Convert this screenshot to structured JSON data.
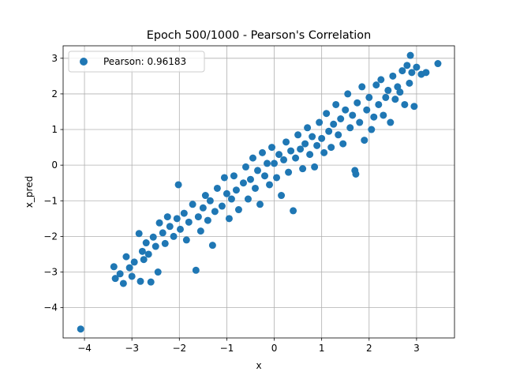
{
  "chart_data": {
    "type": "scatter",
    "title": "Epoch 500/1000 - Pearson's Correlation",
    "xlabel": "x",
    "ylabel": "x_pred",
    "xlim": [
      -4.45,
      3.8
    ],
    "ylim": [
      -4.85,
      3.35
    ],
    "xticks": [
      -4,
      -3,
      -2,
      -1,
      0,
      1,
      2,
      3
    ],
    "yticks": [
      -4,
      -3,
      -2,
      -1,
      0,
      1,
      2,
      3
    ],
    "xtick_labels": [
      "−4",
      "−3",
      "−2",
      "−1",
      "0",
      "1",
      "2",
      "3"
    ],
    "ytick_labels": [
      "−4",
      "−3",
      "−2",
      "−1",
      "0",
      "1",
      "2",
      "3"
    ],
    "grid": true,
    "legend_position": "top-left",
    "marker_color": "#1f77b4",
    "series": [
      {
        "name": "Pearson: 0.96183",
        "points": [
          [
            -4.08,
            -4.6
          ],
          [
            -3.38,
            -2.85
          ],
          [
            -3.35,
            -3.18
          ],
          [
            -3.25,
            -3.05
          ],
          [
            -3.18,
            -3.32
          ],
          [
            -3.12,
            -2.57
          ],
          [
            -3.05,
            -2.88
          ],
          [
            -3.0,
            -3.12
          ],
          [
            -2.95,
            -2.72
          ],
          [
            -2.85,
            -1.92
          ],
          [
            -2.82,
            -3.26
          ],
          [
            -2.78,
            -2.42
          ],
          [
            -2.75,
            -2.65
          ],
          [
            -2.7,
            -2.18
          ],
          [
            -2.65,
            -2.5
          ],
          [
            -2.6,
            -3.28
          ],
          [
            -2.55,
            -2.02
          ],
          [
            -2.5,
            -2.28
          ],
          [
            -2.45,
            -3.0
          ],
          [
            -2.42,
            -1.62
          ],
          [
            -2.35,
            -1.9
          ],
          [
            -2.3,
            -2.2
          ],
          [
            -2.25,
            -1.45
          ],
          [
            -2.2,
            -1.72
          ],
          [
            -2.12,
            -2.0
          ],
          [
            -2.05,
            -1.5
          ],
          [
            -2.02,
            -0.55
          ],
          [
            -1.98,
            -1.8
          ],
          [
            -1.9,
            -1.35
          ],
          [
            -1.85,
            -2.1
          ],
          [
            -1.8,
            -1.6
          ],
          [
            -1.72,
            -1.1
          ],
          [
            -1.65,
            -2.95
          ],
          [
            -1.6,
            -1.45
          ],
          [
            -1.55,
            -1.85
          ],
          [
            -1.5,
            -1.2
          ],
          [
            -1.45,
            -0.85
          ],
          [
            -1.4,
            -1.55
          ],
          [
            -1.35,
            -1.0
          ],
          [
            -1.3,
            -2.25
          ],
          [
            -1.25,
            -1.3
          ],
          [
            -1.2,
            -0.65
          ],
          [
            -1.1,
            -1.15
          ],
          [
            -1.05,
            -0.35
          ],
          [
            -1.0,
            -0.8
          ],
          [
            -0.95,
            -1.5
          ],
          [
            -0.9,
            -0.95
          ],
          [
            -0.85,
            -0.3
          ],
          [
            -0.8,
            -0.7
          ],
          [
            -0.75,
            -1.25
          ],
          [
            -0.65,
            -0.5
          ],
          [
            -0.6,
            -0.05
          ],
          [
            -0.55,
            -0.95
          ],
          [
            -0.5,
            -0.4
          ],
          [
            -0.45,
            0.2
          ],
          [
            -0.4,
            -0.65
          ],
          [
            -0.35,
            -0.15
          ],
          [
            -0.3,
            -1.1
          ],
          [
            -0.25,
            0.35
          ],
          [
            -0.2,
            -0.3
          ],
          [
            -0.15,
            0.05
          ],
          [
            -0.1,
            -0.55
          ],
          [
            -0.05,
            0.5
          ],
          [
            0.0,
            0.05
          ],
          [
            0.05,
            -0.35
          ],
          [
            0.1,
            0.3
          ],
          [
            0.15,
            -0.85
          ],
          [
            0.2,
            0.15
          ],
          [
            0.25,
            0.65
          ],
          [
            0.3,
            -0.2
          ],
          [
            0.35,
            0.4
          ],
          [
            0.4,
            -1.28
          ],
          [
            0.45,
            0.2
          ],
          [
            0.5,
            0.85
          ],
          [
            0.55,
            0.45
          ],
          [
            0.6,
            -0.1
          ],
          [
            0.65,
            0.6
          ],
          [
            0.7,
            1.05
          ],
          [
            0.75,
            0.3
          ],
          [
            0.8,
            0.8
          ],
          [
            0.85,
            -0.05
          ],
          [
            0.9,
            0.55
          ],
          [
            0.95,
            1.2
          ],
          [
            1.0,
            0.75
          ],
          [
            1.05,
            0.35
          ],
          [
            1.1,
            1.45
          ],
          [
            1.15,
            0.95
          ],
          [
            1.2,
            0.5
          ],
          [
            1.25,
            1.15
          ],
          [
            1.3,
            1.7
          ],
          [
            1.35,
            0.85
          ],
          [
            1.4,
            1.3
          ],
          [
            1.45,
            0.6
          ],
          [
            1.5,
            1.55
          ],
          [
            1.55,
            2.0
          ],
          [
            1.6,
            1.05
          ],
          [
            1.65,
            1.4
          ],
          [
            1.7,
            -0.15
          ],
          [
            1.72,
            -0.25
          ],
          [
            1.75,
            1.75
          ],
          [
            1.8,
            1.2
          ],
          [
            1.85,
            2.2
          ],
          [
            1.9,
            0.7
          ],
          [
            1.95,
            1.55
          ],
          [
            2.0,
            1.9
          ],
          [
            2.05,
            1.0
          ],
          [
            2.1,
            1.35
          ],
          [
            2.15,
            2.25
          ],
          [
            2.2,
            1.7
          ],
          [
            2.25,
            2.4
          ],
          [
            2.3,
            1.4
          ],
          [
            2.35,
            1.9
          ],
          [
            2.4,
            2.1
          ],
          [
            2.45,
            1.2
          ],
          [
            2.5,
            2.5
          ],
          [
            2.55,
            1.85
          ],
          [
            2.6,
            2.2
          ],
          [
            2.65,
            2.05
          ],
          [
            2.7,
            2.65
          ],
          [
            2.75,
            1.7
          ],
          [
            2.8,
            2.8
          ],
          [
            2.85,
            2.3
          ],
          [
            2.87,
            3.08
          ],
          [
            2.9,
            2.6
          ],
          [
            2.95,
            1.65
          ],
          [
            3.0,
            2.75
          ],
          [
            3.1,
            2.55
          ],
          [
            3.2,
            2.6
          ],
          [
            3.45,
            2.85
          ]
        ]
      }
    ]
  }
}
